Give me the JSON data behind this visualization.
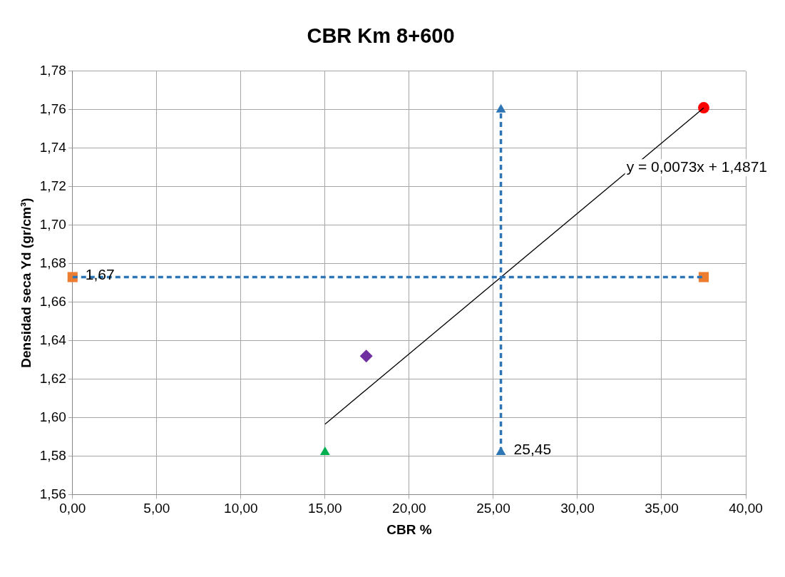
{
  "chart_data": {
    "type": "scatter",
    "title": "CBR Km 8+600",
    "xlabel": "CBR %",
    "ylabel": "Densidad seca Yd (gr/cm³)",
    "xlim": [
      0,
      40
    ],
    "xticks": [
      {
        "value": 0,
        "label": "0,00"
      },
      {
        "value": 5,
        "label": "5,00"
      },
      {
        "value": 10,
        "label": "10,00"
      },
      {
        "value": 15,
        "label": "15,00"
      },
      {
        "value": 20,
        "label": "20,00"
      },
      {
        "value": 25,
        "label": "25,00"
      },
      {
        "value": 30,
        "label": "30,00"
      },
      {
        "value": 35,
        "label": "35,00"
      },
      {
        "value": 40,
        "label": "40,00"
      }
    ],
    "ylim": [
      1.56,
      1.78
    ],
    "yticks": [
      {
        "value": 1.56,
        "label": "1,56"
      },
      {
        "value": 1.58,
        "label": "1,58"
      },
      {
        "value": 1.6,
        "label": "1,60"
      },
      {
        "value": 1.62,
        "label": "1,62"
      },
      {
        "value": 1.64,
        "label": "1,64"
      },
      {
        "value": 1.66,
        "label": "1,66"
      },
      {
        "value": 1.68,
        "label": "1,68"
      },
      {
        "value": 1.7,
        "label": "1,70"
      },
      {
        "value": 1.72,
        "label": "1,72"
      },
      {
        "value": 1.74,
        "label": "1,74"
      },
      {
        "value": 1.76,
        "label": "1,76"
      },
      {
        "value": 1.78,
        "label": "1,78"
      }
    ],
    "grid": true,
    "legend": false,
    "series": [
      {
        "type": "line",
        "color": "#2e75b6",
        "x": [
          0,
          37.5
        ],
        "values": [
          1.673,
          1.673
        ],
        "marker": "none",
        "line_style": "dashed"
      },
      {
        "color": "#ed7d31",
        "x": [
          0,
          37.5
        ],
        "values": [
          1.673,
          1.673
        ],
        "marker": "square"
      },
      {
        "type": "line",
        "color": "#2e75b6",
        "x": [
          25.45,
          25.45
        ],
        "values": [
          1.582,
          1.76
        ],
        "marker": "triangle",
        "line_style": "dashed"
      },
      {
        "type": "line",
        "color": "#000000",
        "x": [
          15,
          37.5
        ],
        "values": [
          1.5966,
          1.7609
        ],
        "marker": "none",
        "line_style": "solid"
      },
      {
        "color": "#ff0000",
        "x": [
          37.5
        ],
        "values": [
          1.761
        ],
        "marker": "circle"
      },
      {
        "color": "#00b050",
        "x": [
          15
        ],
        "values": [
          1.582
        ],
        "marker": "triangle"
      },
      {
        "color": "#7030a0",
        "x": [
          17.45
        ],
        "values": [
          1.632
        ],
        "marker": "diamond"
      }
    ],
    "annotations": [
      {
        "text": "1,67",
        "x": 0,
        "y": 1.673
      },
      {
        "text": "25,45",
        "x": 25.45,
        "y": 1.582
      },
      "y = 0,0073x + 1,4871"
    ]
  }
}
